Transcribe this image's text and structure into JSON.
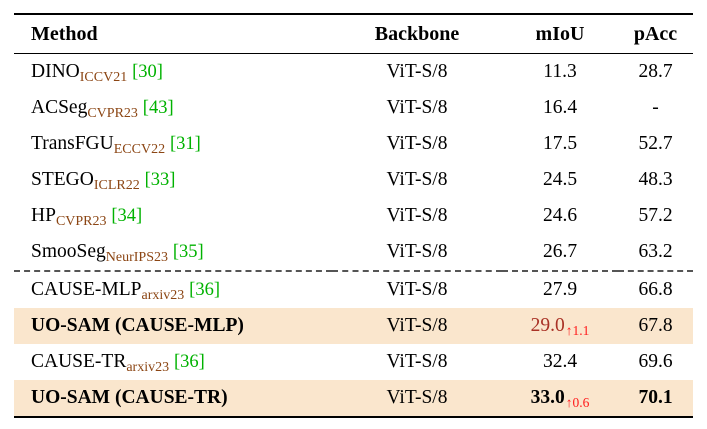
{
  "table": {
    "headers": [
      "Method",
      "Backbone",
      "mIoU",
      "pAcc"
    ],
    "rows": [
      {
        "method": "DINO",
        "venue": "ICCV21",
        "cite": "[30]",
        "backbone": "ViT-S/8",
        "miou": "11.3",
        "pacc": "28.7"
      },
      {
        "method": "ACSeg",
        "venue": "CVPR23",
        "cite": "[43]",
        "backbone": "ViT-S/8",
        "miou": "16.4",
        "pacc": "-"
      },
      {
        "method": "TransFGU",
        "venue": "ECCV22",
        "cite": "[31]",
        "backbone": "ViT-S/8",
        "miou": "17.5",
        "pacc": "52.7"
      },
      {
        "method": "STEGO",
        "venue": "ICLR22",
        "cite": "[33]",
        "backbone": "ViT-S/8",
        "miou": "24.5",
        "pacc": "48.3"
      },
      {
        "method": "HP",
        "venue": "CVPR23",
        "cite": "[34]",
        "backbone": "ViT-S/8",
        "miou": "24.6",
        "pacc": "57.2"
      },
      {
        "method": "SmooSeg",
        "venue": "NeurIPS23",
        "cite": "[35]",
        "backbone": "ViT-S/8",
        "miou": "26.7",
        "pacc": "63.2"
      },
      {
        "method": "CAUSE-MLP",
        "venue": "arxiv23",
        "cite": "[36]",
        "backbone": "ViT-S/8",
        "miou": "27.9",
        "pacc": "66.8",
        "dashed_before": true
      },
      {
        "method": "UO-SAM (CAUSE-MLP)",
        "backbone": "ViT-S/8",
        "miou": "29.0",
        "gain": "↑1.1",
        "pacc": "67.8",
        "highlight": true,
        "method_bold": true,
        "miou_red": true
      },
      {
        "method": "CAUSE-TR",
        "venue": "arxiv23",
        "cite": "[36]",
        "backbone": "ViT-S/8",
        "miou": "32.4",
        "pacc": "69.6"
      },
      {
        "method": "UO-SAM (CAUSE-TR)",
        "backbone": "ViT-S/8",
        "miou": "33.0",
        "gain": "↑0.6",
        "pacc": "70.1",
        "highlight": true,
        "method_bold": true,
        "miou_bold": true,
        "pacc_bold": true
      }
    ]
  },
  "colors": {
    "venue_subscript": "#8B4513",
    "citation_green": "#00B200",
    "gain_red": "#FF1A1A",
    "improved_value_red": "#A93226",
    "highlight_row": "#FAE6CD",
    "rule": "#000000"
  }
}
